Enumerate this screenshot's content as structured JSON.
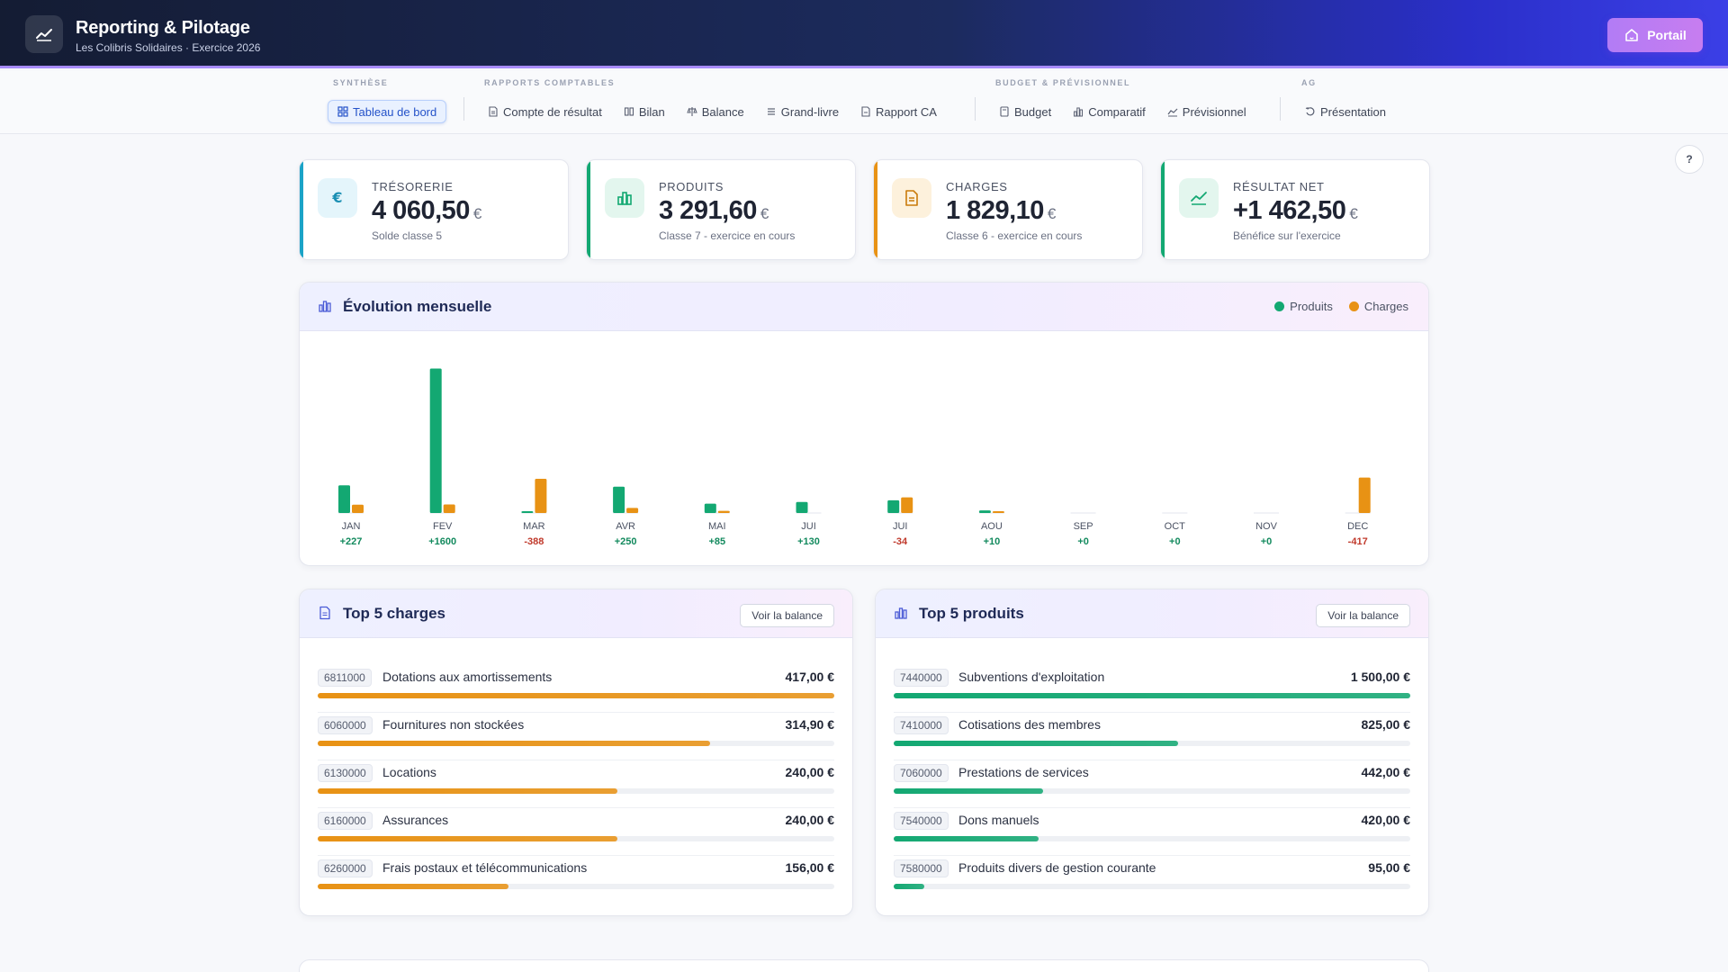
{
  "header": {
    "title": "Reporting & Pilotage",
    "subtitle": "Les Colibris Solidaires · Exercice 2026",
    "portal_label": "Portail"
  },
  "nav": {
    "groups": [
      {
        "label": "SYNTHÈSE",
        "items": [
          {
            "label": "Tableau de bord",
            "icon": "grid-icon",
            "active": true
          }
        ]
      },
      {
        "label": "RAPPORTS COMPTABLES",
        "items": [
          {
            "label": "Compte de résultat",
            "icon": "document-icon"
          },
          {
            "label": "Bilan",
            "icon": "columns-icon"
          },
          {
            "label": "Balance",
            "icon": "scale-icon"
          },
          {
            "label": "Grand-livre",
            "icon": "list-icon"
          },
          {
            "label": "Rapport CA",
            "icon": "report-icon"
          }
        ]
      },
      {
        "label": "BUDGET & PRÉVISIONNEL",
        "items": [
          {
            "label": "Budget",
            "icon": "calculator-icon"
          },
          {
            "label": "Comparatif",
            "icon": "bar-chart-icon"
          },
          {
            "label": "Prévisionnel",
            "icon": "trend-icon"
          }
        ]
      },
      {
        "label": "AG",
        "items": [
          {
            "label": "Présentation",
            "icon": "presentation-icon"
          }
        ]
      }
    ]
  },
  "help_label": "?",
  "kpis": [
    {
      "label": "TRÉSORERIE",
      "value": "4 060,50",
      "currency": "€",
      "sub": "Solde classe 5",
      "accent": "#1aa3c7",
      "tint": "#e4f5fb",
      "icon": "euro-icon"
    },
    {
      "label": "PRODUITS",
      "value": "3 291,60",
      "currency": "€",
      "sub": "Classe 7 - exercice en cours",
      "accent": "#13a872",
      "tint": "#e3f6ee",
      "icon": "bar-chart-icon"
    },
    {
      "label": "CHARGES",
      "value": "1 829,10",
      "currency": "€",
      "sub": "Classe 6 - exercice en cours",
      "accent": "#e89214",
      "tint": "#fdf1dc",
      "icon": "document-icon"
    },
    {
      "label": "RÉSULTAT NET",
      "value": "+1 462,50",
      "currency": "€",
      "sub": "Bénéfice sur l'exercice",
      "accent": "#13a872",
      "tint": "#e3f6ee",
      "icon": "trend-icon"
    }
  ],
  "chart_panel": {
    "title": "Évolution mensuelle",
    "legend": [
      {
        "name": "Produits",
        "color": "#13a872"
      },
      {
        "name": "Charges",
        "color": "#e89214"
      }
    ]
  },
  "chart_data": {
    "type": "bar",
    "categories": [
      "JAN",
      "FEV",
      "MAR",
      "AVR",
      "MAI",
      "JUI",
      "JUI",
      "AOU",
      "SEP",
      "OCT",
      "NOV",
      "DEC"
    ],
    "series": [
      {
        "name": "Produits",
        "values": [
          325,
          1700,
          15,
          310,
          110,
          130,
          150,
          30,
          0,
          0,
          0,
          0
        ]
      },
      {
        "name": "Charges",
        "values": [
          98,
          100,
          403,
          60,
          25,
          0,
          184,
          20,
          0,
          0,
          0,
          417
        ]
      }
    ],
    "diff_labels": [
      "+227",
      "+1600",
      "-388",
      "+250",
      "+85",
      "+130",
      "-34",
      "+10",
      "+0",
      "+0",
      "+0",
      "-417"
    ],
    "colors": {
      "positive": "#138a5e",
      "negative": "#c0392b"
    }
  },
  "top_charges": {
    "title": "Top 5 charges",
    "button": "Voir la balance",
    "color": "#e89214",
    "rows": [
      {
        "code": "6811000",
        "label": "Dotations aux amortissements",
        "amount": "417,00 €",
        "ratio": 1.0
      },
      {
        "code": "6060000",
        "label": "Fournitures non stockées",
        "amount": "314,90 €",
        "ratio": 0.76
      },
      {
        "code": "6130000",
        "label": "Locations",
        "amount": "240,00 €",
        "ratio": 0.58
      },
      {
        "code": "6160000",
        "label": "Assurances",
        "amount": "240,00 €",
        "ratio": 0.58
      },
      {
        "code": "6260000",
        "label": "Frais postaux et télécommunications",
        "amount": "156,00 €",
        "ratio": 0.37
      }
    ]
  },
  "top_produits": {
    "title": "Top 5 produits",
    "button": "Voir la balance",
    "color": "#13a872",
    "rows": [
      {
        "code": "7440000",
        "label": "Subventions d'exploitation",
        "amount": "1 500,00 €",
        "ratio": 1.0
      },
      {
        "code": "7410000",
        "label": "Cotisations des membres",
        "amount": "825,00 €",
        "ratio": 0.55
      },
      {
        "code": "7060000",
        "label": "Prestations de services",
        "amount": "442,00 €",
        "ratio": 0.29
      },
      {
        "code": "7540000",
        "label": "Dons manuels",
        "amount": "420,00 €",
        "ratio": 0.28
      },
      {
        "code": "7580000",
        "label": "Produits divers de gestion courante",
        "amount": "95,00 €",
        "ratio": 0.06
      }
    ]
  }
}
